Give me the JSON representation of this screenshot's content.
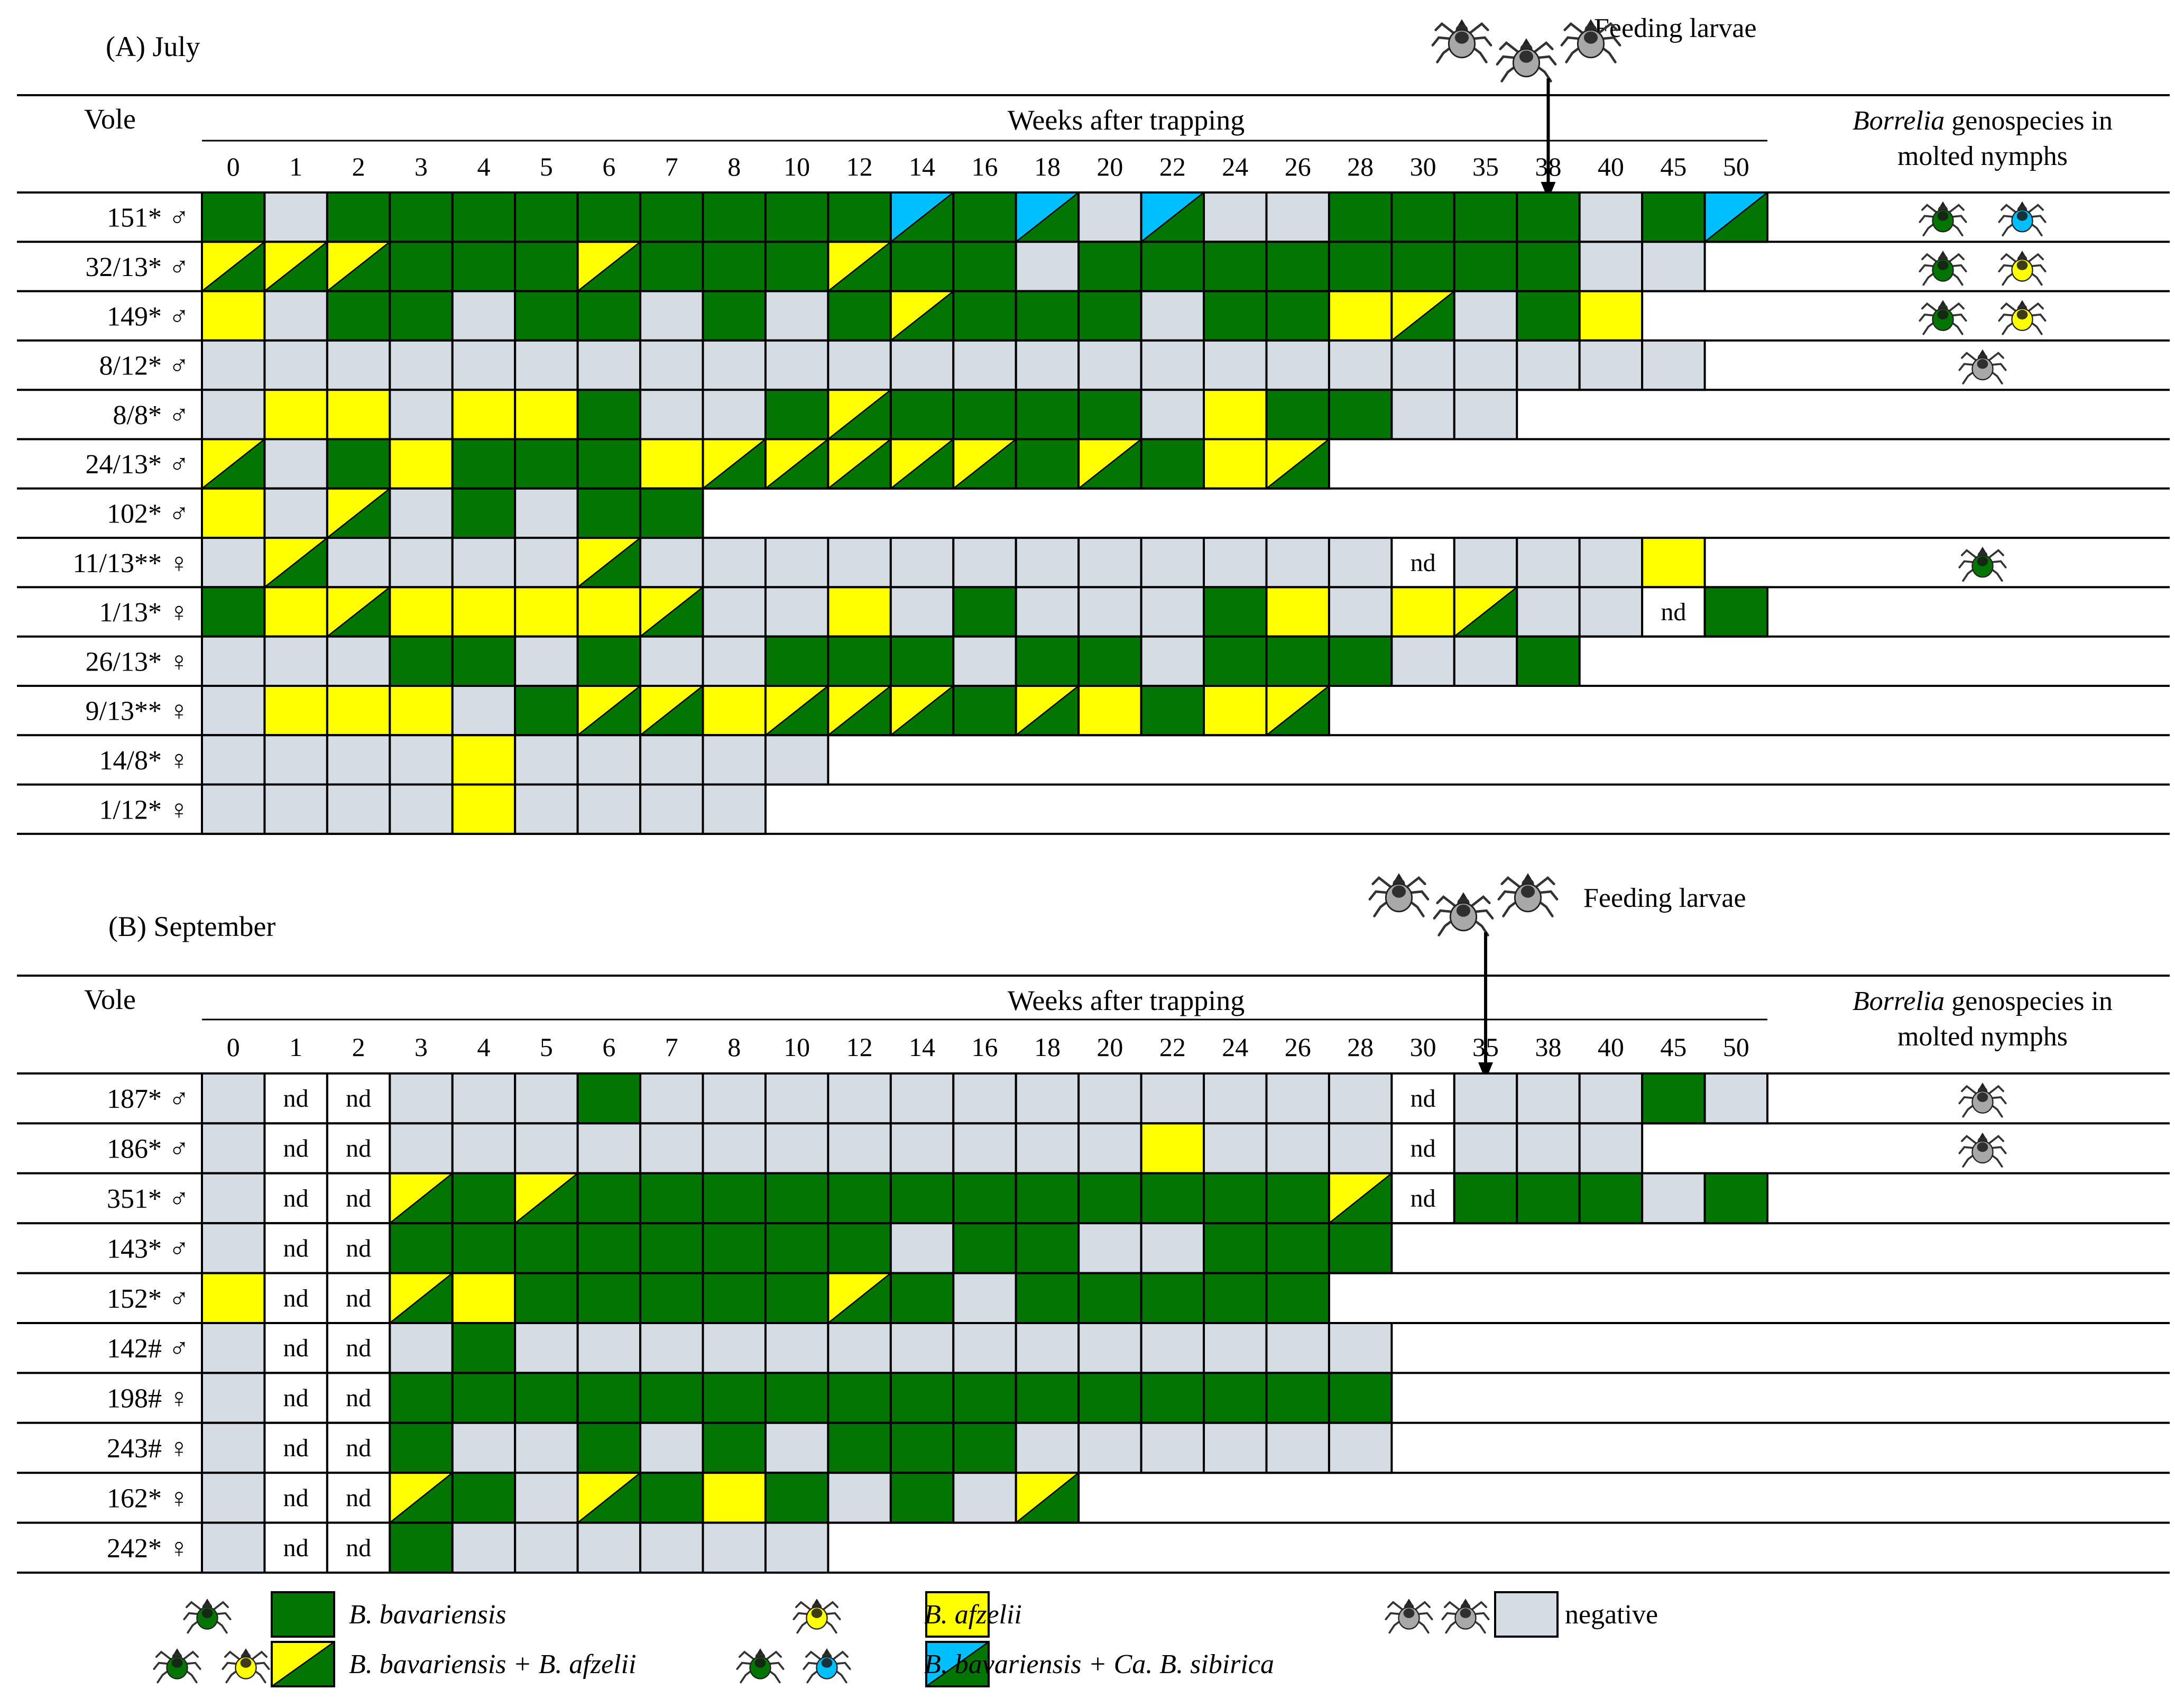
{
  "colors": {
    "bav": "#037503",
    "afz": "#FFFF00",
    "sib": "#00BFFF",
    "neg": "#D6DCE4",
    "tick_grey": "#A8A8A8",
    "line": "#000000"
  },
  "code_meaning": {
    "B": "B. bavariensis",
    "A": "B. afzelii",
    "BA": "B. bavariensis + B. afzelii",
    "BS": "B. bavariensis + Ca. B. sibirica",
    "N": "negative",
    "nd": "not determined (printed as nd)",
    "": "no sample (blank)"
  },
  "tick_icon_names": {
    "B": "green-tick-icon",
    "A": "yellow-tick-icon",
    "S": "blue-tick-icon",
    "N": "grey-tick-icon"
  },
  "panels": [
    {
      "title": "(A) July",
      "feeding_label": "Feeding larvae",
      "feeding_week": "38",
      "vole_header": "Vole",
      "weeks_header": "Weeks after trapping",
      "genospecies_header_italic": "Borrelia",
      "genospecies_header_rest": " genospecies in",
      "genospecies_header_line2": "molted nymphs",
      "weeks": [
        "0",
        "1",
        "2",
        "3",
        "4",
        "5",
        "6",
        "7",
        "8",
        "10",
        "12",
        "14",
        "16",
        "18",
        "20",
        "22",
        "24",
        "26",
        "28",
        "30",
        "35",
        "38",
        "40",
        "45",
        "50"
      ],
      "rows": [
        {
          "label": "151* ♂",
          "cells": [
            "B",
            "N",
            "B",
            "B",
            "B",
            "B",
            "B",
            "B",
            "B",
            "B",
            "B",
            "BS",
            "B",
            "BS",
            "N",
            "BS",
            "N",
            "N",
            "B",
            "B",
            "B",
            "B",
            "N",
            "B",
            "BS"
          ],
          "nymphs": [
            "B",
            "S"
          ]
        },
        {
          "label": "32/13* ♂",
          "cells": [
            "BA",
            "BA",
            "BA",
            "B",
            "B",
            "B",
            "BA",
            "B",
            "B",
            "B",
            "BA",
            "B",
            "B",
            "N",
            "B",
            "B",
            "B",
            "B",
            "B",
            "B",
            "B",
            "B",
            "N",
            "N",
            ""
          ],
          "nymphs": [
            "B",
            "A"
          ]
        },
        {
          "label": "149* ♂",
          "cells": [
            "A",
            "N",
            "B",
            "B",
            "N",
            "B",
            "B",
            "N",
            "B",
            "N",
            "B",
            "BA",
            "B",
            "B",
            "B",
            "N",
            "B",
            "B",
            "A",
            "BA",
            "N",
            "B",
            "A",
            "",
            ""
          ],
          "nymphs": [
            "B",
            "A"
          ]
        },
        {
          "label": "8/12* ♂",
          "cells": [
            "N",
            "N",
            "N",
            "N",
            "N",
            "N",
            "N",
            "N",
            "N",
            "N",
            "N",
            "N",
            "N",
            "N",
            "N",
            "N",
            "N",
            "N",
            "N",
            "N",
            "N",
            "N",
            "N",
            "N",
            ""
          ],
          "nymphs": [
            "N"
          ]
        },
        {
          "label": "8/8* ♂",
          "cells": [
            "N",
            "A",
            "A",
            "N",
            "A",
            "A",
            "B",
            "N",
            "N",
            "B",
            "BA",
            "B",
            "B",
            "B",
            "B",
            "N",
            "A",
            "B",
            "B",
            "N",
            "N",
            "",
            "",
            "",
            ""
          ],
          "nymphs": []
        },
        {
          "label": "24/13* ♂",
          "cells": [
            "BA",
            "N",
            "B",
            "A",
            "B",
            "B",
            "B",
            "A",
            "BA",
            "BA",
            "BA",
            "BA",
            "BA",
            "B",
            "BA",
            "B",
            "A",
            "BA",
            "",
            "",
            "",
            "",
            "",
            "",
            ""
          ],
          "nymphs": []
        },
        {
          "label": "102* ♂",
          "cells": [
            "A",
            "N",
            "BA",
            "N",
            "B",
            "N",
            "B",
            "B",
            "",
            "",
            "",
            "",
            "",
            "",
            "",
            "",
            "",
            "",
            "",
            "",
            "",
            "",
            "",
            "",
            ""
          ],
          "nymphs": []
        },
        {
          "label": "11/13** ♀",
          "cells": [
            "N",
            "BA",
            "N",
            "N",
            "N",
            "N",
            "BA",
            "N",
            "N",
            "N",
            "N",
            "N",
            "N",
            "N",
            "N",
            "N",
            "N",
            "N",
            "N",
            "nd",
            "N",
            "N",
            "N",
            "A",
            ""
          ],
          "nymphs": [
            "B"
          ]
        },
        {
          "label": "1/13* ♀",
          "cells": [
            "B",
            "A",
            "BA",
            "A",
            "A",
            "A",
            "A",
            "BA",
            "N",
            "N",
            "A",
            "N",
            "B",
            "N",
            "N",
            "N",
            "B",
            "A",
            "N",
            "A",
            "BA",
            "N",
            "N",
            "nd",
            "B"
          ],
          "nymphs": []
        },
        {
          "label": "26/13* ♀",
          "cells": [
            "N",
            "N",
            "N",
            "B",
            "B",
            "N",
            "B",
            "N",
            "N",
            "B",
            "B",
            "B",
            "N",
            "B",
            "B",
            "N",
            "B",
            "B",
            "B",
            "N",
            "N",
            "B",
            "",
            "",
            ""
          ],
          "nymphs": []
        },
        {
          "label": "9/13** ♀",
          "cells": [
            "N",
            "A",
            "A",
            "A",
            "N",
            "B",
            "BA",
            "BA",
            "A",
            "BA",
            "BA",
            "BA",
            "B",
            "BA",
            "A",
            "B",
            "A",
            "BA",
            "",
            "",
            "",
            "",
            "",
            "",
            ""
          ],
          "nymphs": []
        },
        {
          "label": "14/8* ♀",
          "cells": [
            "N",
            "N",
            "N",
            "N",
            "A",
            "N",
            "N",
            "N",
            "N",
            "N",
            "",
            "",
            "",
            "",
            "",
            "",
            "",
            "",
            "",
            "",
            "",
            "",
            "",
            "",
            ""
          ],
          "nymphs": []
        },
        {
          "label": "1/12* ♀",
          "cells": [
            "N",
            "N",
            "N",
            "N",
            "A",
            "N",
            "N",
            "N",
            "N",
            "",
            "",
            "",
            "",
            "",
            "",
            "",
            "",
            "",
            "",
            "",
            "",
            "",
            "",
            "",
            ""
          ],
          "nymphs": []
        }
      ]
    },
    {
      "title": "(B) September",
      "feeding_label": "Feeding larvae",
      "feeding_week": "35",
      "vole_header": "Vole",
      "weeks_header": "Weeks after trapping",
      "genospecies_header_italic": "Borrelia",
      "genospecies_header_rest": " genospecies in",
      "genospecies_header_line2": "molted nymphs",
      "weeks": [
        "0",
        "1",
        "2",
        "3",
        "4",
        "5",
        "6",
        "7",
        "8",
        "10",
        "12",
        "14",
        "16",
        "18",
        "20",
        "22",
        "24",
        "26",
        "28",
        "30",
        "35",
        "38",
        "40",
        "45",
        "50"
      ],
      "rows": [
        {
          "label": "187* ♂",
          "cells": [
            "N",
            "nd",
            "nd",
            "N",
            "N",
            "N",
            "B",
            "N",
            "N",
            "N",
            "N",
            "N",
            "N",
            "N",
            "N",
            "N",
            "N",
            "N",
            "N",
            "nd",
            "N",
            "N",
            "N",
            "B",
            "N"
          ],
          "nymphs": [
            "N"
          ]
        },
        {
          "label": "186* ♂",
          "cells": [
            "N",
            "nd",
            "nd",
            "N",
            "N",
            "N",
            "N",
            "N",
            "N",
            "N",
            "N",
            "N",
            "N",
            "N",
            "N",
            "A",
            "N",
            "N",
            "N",
            "nd",
            "N",
            "N",
            "N",
            "",
            ""
          ],
          "nymphs": [
            "N"
          ]
        },
        {
          "label": "351* ♂",
          "cells": [
            "N",
            "nd",
            "nd",
            "BA",
            "B",
            "BA",
            "B",
            "B",
            "B",
            "B",
            "B",
            "B",
            "B",
            "B",
            "B",
            "B",
            "B",
            "B",
            "BA",
            "nd",
            "B",
            "B",
            "B",
            "N",
            "B"
          ],
          "nymphs": []
        },
        {
          "label": "143* ♂",
          "cells": [
            "N",
            "nd",
            "nd",
            "B",
            "B",
            "B",
            "B",
            "B",
            "B",
            "B",
            "B",
            "N",
            "B",
            "B",
            "N",
            "N",
            "B",
            "B",
            "B",
            "",
            "",
            "",
            "",
            "",
            ""
          ],
          "nymphs": []
        },
        {
          "label": "152* ♂",
          "cells": [
            "A",
            "nd",
            "nd",
            "BA",
            "A",
            "B",
            "B",
            "B",
            "B",
            "B",
            "BA",
            "B",
            "N",
            "B",
            "B",
            "B",
            "B",
            "B",
            "",
            "",
            "",
            "",
            "",
            "",
            ""
          ],
          "nymphs": []
        },
        {
          "label": "142# ♂",
          "cells": [
            "N",
            "nd",
            "nd",
            "N",
            "B",
            "N",
            "N",
            "N",
            "N",
            "N",
            "N",
            "N",
            "N",
            "N",
            "N",
            "N",
            "N",
            "N",
            "N",
            "",
            "",
            "",
            "",
            "",
            ""
          ],
          "nymphs": []
        },
        {
          "label": "198# ♀",
          "cells": [
            "N",
            "nd",
            "nd",
            "B",
            "B",
            "B",
            "B",
            "B",
            "B",
            "B",
            "B",
            "B",
            "B",
            "B",
            "B",
            "B",
            "B",
            "B",
            "B",
            "",
            "",
            "",
            "",
            "",
            ""
          ],
          "nymphs": []
        },
        {
          "label": "243# ♀",
          "cells": [
            "N",
            "nd",
            "nd",
            "B",
            "N",
            "N",
            "B",
            "N",
            "B",
            "N",
            "B",
            "B",
            "B",
            "N",
            "N",
            "N",
            "N",
            "N",
            "N",
            "",
            "",
            "",
            "",
            "",
            ""
          ],
          "nymphs": []
        },
        {
          "label": "162* ♀",
          "cells": [
            "N",
            "nd",
            "nd",
            "BA",
            "B",
            "N",
            "BA",
            "B",
            "A",
            "B",
            "N",
            "B",
            "N",
            "BA",
            "",
            "",
            "",
            "",
            "",
            "",
            "",
            "",
            "",
            "",
            ""
          ],
          "nymphs": []
        },
        {
          "label": "242* ♀",
          "cells": [
            "N",
            "nd",
            "nd",
            "B",
            "N",
            "N",
            "N",
            "N",
            "N",
            "N",
            "",
            "",
            "",
            "",
            "",
            "",
            "",
            "",
            "",
            "",
            "",
            "",
            "",
            "",
            ""
          ],
          "nymphs": []
        }
      ]
    }
  ],
  "legend": [
    {
      "code": "B",
      "label": "B. bavariensis",
      "ticks": [
        "B"
      ]
    },
    {
      "code": "BA",
      "label": "B. bavariensis + B. afzelii",
      "ticks": [
        "B",
        "A"
      ]
    },
    {
      "code": "A",
      "label": "B. afzelii",
      "ticks": [
        "A"
      ]
    },
    {
      "code": "BS",
      "label": "B. bavariensis + Ca. B. sibirica",
      "ticks": [
        "B",
        "S"
      ]
    },
    {
      "code": "N",
      "label": "negative",
      "ticks": [
        "N",
        "N"
      ]
    }
  ]
}
